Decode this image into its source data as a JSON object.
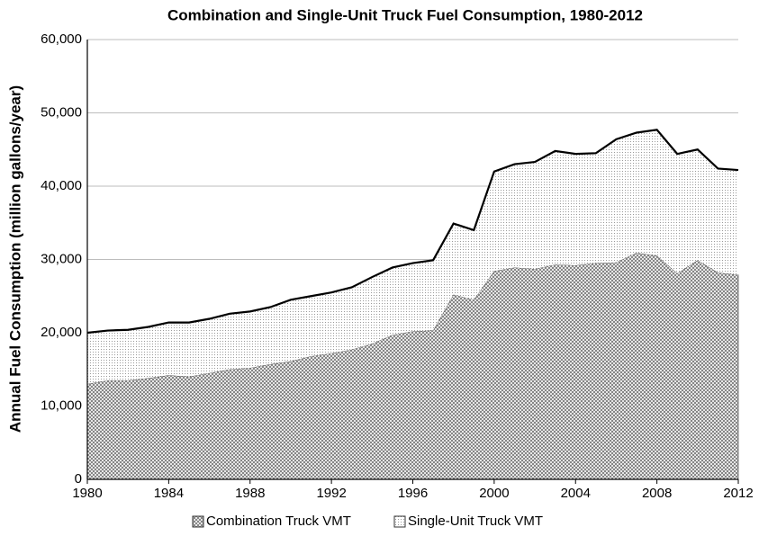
{
  "chart_data": {
    "type": "stacked_area",
    "title": "Combination and Single-Unit Truck Fuel Consumption, 1980-2012",
    "y_label": "Annual Fuel Consumption (million gallons/year)",
    "x": [
      1980,
      1981,
      1982,
      1983,
      1984,
      1985,
      1986,
      1987,
      1988,
      1989,
      1990,
      1991,
      1992,
      1993,
      1994,
      1995,
      1996,
      1997,
      1998,
      1999,
      2000,
      2001,
      2002,
      2003,
      2004,
      2005,
      2006,
      2007,
      2008,
      2009,
      2010,
      2011,
      2012
    ],
    "series": [
      {
        "name": "Combination Truck VMT",
        "color": "#6e6e6e",
        "values": [
          13000,
          13500,
          13500,
          13800,
          14200,
          14000,
          14500,
          15000,
          15200,
          15700,
          16100,
          16800,
          17200,
          17700,
          18500,
          19700,
          20200,
          20300,
          25200,
          24500,
          28400,
          28900,
          28700,
          29300,
          29200,
          29500,
          29600,
          30900,
          30500,
          28100,
          29900,
          28200,
          27900
        ]
      },
      {
        "name": "Single-Unit Truck VMT",
        "color": "#9a9a9a",
        "values": [
          7000,
          6800,
          6900,
          7000,
          7200,
          7400,
          7400,
          7600,
          7700,
          7800,
          8400,
          8200,
          8300,
          8500,
          9100,
          9200,
          9300,
          9600,
          9700,
          9500,
          13600,
          14100,
          14600,
          15500,
          15200,
          15000,
          16800,
          16400,
          17200,
          16300,
          15100,
          14200,
          14300
        ]
      }
    ],
    "xlim": [
      1980,
      2012
    ],
    "xticks": [
      1980,
      1984,
      1988,
      1992,
      1996,
      2000,
      2004,
      2008,
      2012
    ],
    "ylim": [
      0,
      60000
    ],
    "yticks": [
      0,
      {
        "value": 10000,
        "label": "10,000"
      },
      {
        "value": 20000,
        "label": "20,000"
      },
      {
        "value": 30000,
        "label": "30,000"
      },
      {
        "value": 40000,
        "label": "40,000"
      },
      {
        "value": 50000,
        "label": "50,000"
      },
      {
        "value": 60000,
        "label": "60,000"
      }
    ],
    "grid": true,
    "legend": "bottom"
  }
}
